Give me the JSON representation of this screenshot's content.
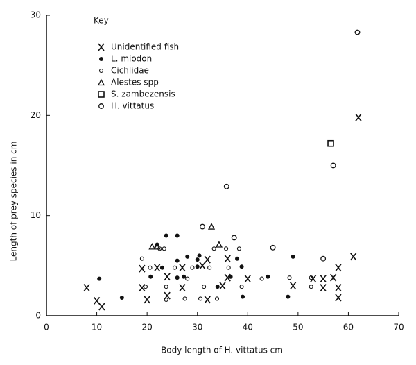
{
  "chart_data": {
    "type": "scatter",
    "xlabel": "Body length of H. vittatus cm",
    "ylabel": "Length of prey species in cm",
    "legend_title": "Key",
    "legend": "upper left",
    "xlim": [
      0,
      70
    ],
    "ylim": [
      0,
      30
    ],
    "xticks": [
      0,
      10,
      20,
      30,
      40,
      50,
      60,
      70
    ],
    "yticks": [
      0,
      10,
      20,
      30
    ],
    "series": [
      {
        "name": "Unidentified fish",
        "marker": "x",
        "color": "#111111",
        "x": [
          8,
          10,
          11,
          19,
          19,
          20,
          22,
          24,
          24,
          27,
          27,
          31,
          32,
          36,
          36,
          32,
          35,
          40,
          49,
          53,
          55,
          55,
          57,
          58,
          58,
          58,
          61,
          62
        ],
        "values": [
          2.8,
          1.5,
          0.9,
          2.8,
          4.7,
          1.6,
          4.8,
          3.9,
          2.0,
          4.8,
          2.8,
          5.0,
          5.6,
          5.7,
          3.8,
          1.6,
          3.0,
          3.7,
          3.0,
          3.7,
          3.7,
          2.8,
          3.8,
          4.8,
          2.8,
          1.8,
          5.9,
          19.8
        ]
      },
      {
        "name": "L. miodon",
        "marker": "filled-circle",
        "color": "#111111",
        "x": [
          10.5,
          15,
          20.7,
          22,
          23,
          23.8,
          26,
          26,
          27.3,
          28,
          30,
          30,
          30.4,
          34,
          36.6,
          37.9,
          38.8,
          39,
          44,
          48,
          49,
          26
        ],
        "values": [
          3.7,
          1.8,
          3.9,
          7.1,
          4.8,
          8,
          8,
          5.5,
          3.9,
          5.9,
          5.6,
          4.9,
          6,
          2.9,
          3.9,
          5.7,
          4.9,
          1.9,
          3.9,
          1.9,
          5.9,
          3.8
        ]
      },
      {
        "name": "Cichlidae",
        "marker": "circle",
        "color": "#111111",
        "x": [
          19,
          20.6,
          23.4,
          23.8,
          23.8,
          25.5,
          27.5,
          28,
          29,
          30.6,
          31.3,
          32.4,
          33.3,
          33.9,
          35.7,
          36.2,
          38.3,
          38.8,
          42.8,
          48.3,
          52.6,
          52.6,
          22.5,
          19.7
        ],
        "values": [
          5.7,
          4.8,
          6.7,
          1.6,
          2.9,
          4.8,
          1.7,
          3.7,
          4.8,
          1.7,
          2.9,
          4.8,
          6.7,
          1.7,
          6.7,
          4.8,
          6.7,
          2.9,
          3.7,
          3.8,
          3.8,
          2.9,
          6.7,
          2.9
        ]
      },
      {
        "name": "Alestes spp",
        "marker": "triangle",
        "color": "#111111",
        "x": [
          21,
          22,
          32.8,
          34.3
        ],
        "values": [
          6.9,
          6.9,
          8.9,
          7.1
        ]
      },
      {
        "name": "S. zambezensis",
        "marker": "square",
        "color": "#111111",
        "x": [
          56.5
        ],
        "values": [
          17.2
        ]
      },
      {
        "name": "H. vittatus",
        "marker": "big-circle",
        "color": "#111111",
        "x": [
          31,
          35.8,
          37.3,
          45,
          55,
          57,
          61.8
        ],
        "values": [
          8.9,
          12.9,
          7.8,
          6.8,
          5.7,
          15,
          28.3
        ]
      }
    ]
  }
}
